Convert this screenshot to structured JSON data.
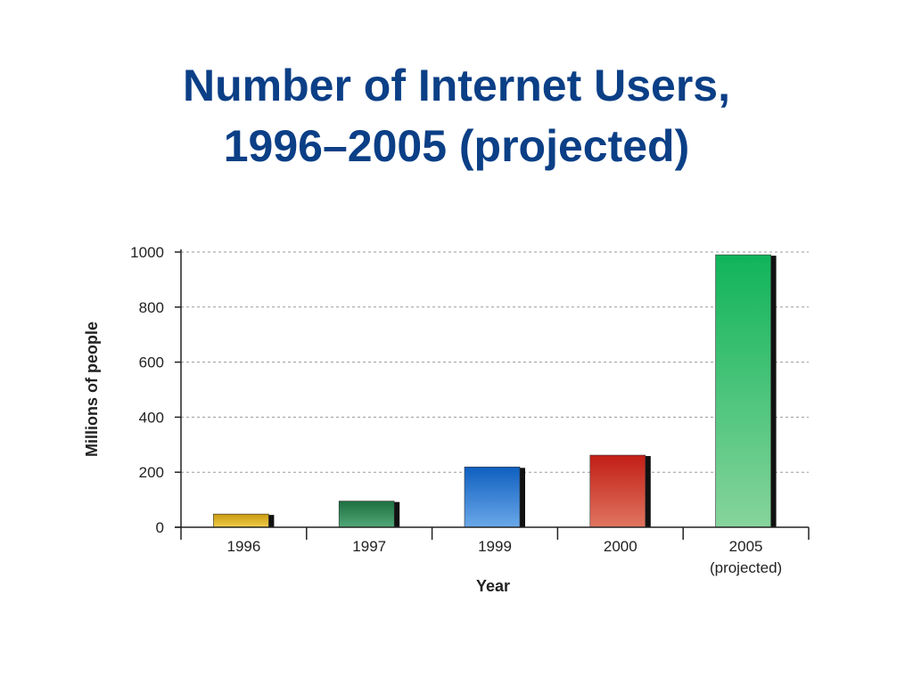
{
  "title_lines": [
    "Number of Internet Users,",
    "1996–2005 (projected)"
  ],
  "chart_data": {
    "type": "bar",
    "categories": [
      "1996",
      "1997",
      "1999",
      "2000",
      "2005"
    ],
    "category_sublabels": [
      "",
      "",
      "",
      "",
      "(projected)"
    ],
    "values": [
      48,
      95,
      219,
      262,
      990
    ],
    "xlabel": "Year",
    "ylabel": "Millions of people",
    "ylim": [
      0,
      1000
    ],
    "yticks": [
      0,
      200,
      400,
      600,
      800,
      1000
    ],
    "grid": true,
    "bar_colors": [
      [
        "#f1ce4a",
        "#c99a12"
      ],
      [
        "#50a878",
        "#1d6e40"
      ],
      [
        "#6aa8e8",
        "#0f5fc0"
      ],
      [
        "#e07560",
        "#c21e16"
      ],
      [
        "#86d49c",
        "#10b45a"
      ]
    ]
  }
}
